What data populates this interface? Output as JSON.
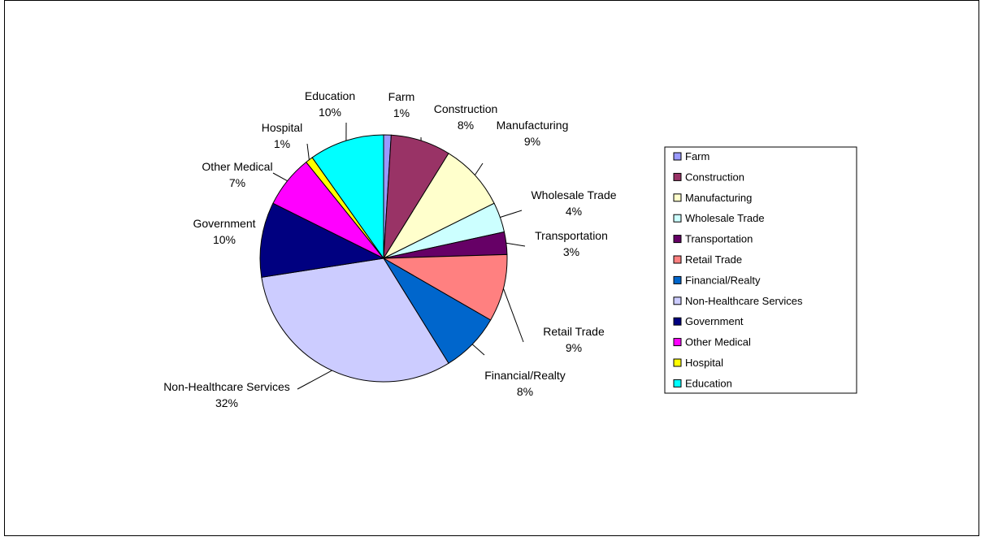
{
  "chart_data": {
    "type": "pie",
    "title": "",
    "slices": [
      {
        "label": "Farm",
        "value": 1,
        "color": "#9999FF"
      },
      {
        "label": "Construction",
        "value": 8,
        "color": "#993366"
      },
      {
        "label": "Manufacturing",
        "value": 9,
        "color": "#FFFFCC"
      },
      {
        "label": "Wholesale Trade",
        "value": 4,
        "color": "#CCFFFF"
      },
      {
        "label": "Transportation",
        "value": 3,
        "color": "#660066"
      },
      {
        "label": "Retail Trade",
        "value": 9,
        "color": "#FF8080"
      },
      {
        "label": "Financial/Realty",
        "value": 8,
        "color": "#0066CC"
      },
      {
        "label": "Non-Healthcare Services",
        "value": 32,
        "color": "#CCCCFF"
      },
      {
        "label": "Government",
        "value": 10,
        "color": "#000080"
      },
      {
        "label": "Other Medical",
        "value": 7,
        "color": "#FF00FF"
      },
      {
        "label": "Hospital",
        "value": 1,
        "color": "#FFFF00"
      },
      {
        "label": "Education",
        "value": 10,
        "color": "#00FFFF"
      }
    ],
    "data_labels": [
      "1%",
      "8%",
      "9%",
      "4%",
      "3%",
      "9%",
      "8%",
      "32%",
      "10%",
      "7%",
      "1%",
      "10%"
    ],
    "legend_position": "right",
    "grid": false
  }
}
